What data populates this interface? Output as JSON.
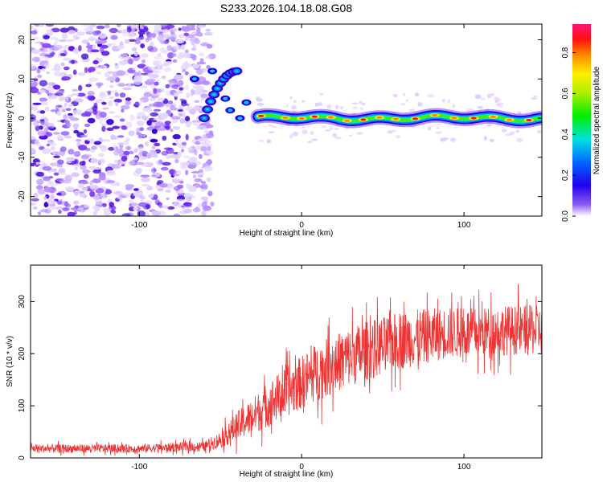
{
  "title": "S233.2026.104.18.08.G08",
  "chart_data": [
    {
      "type": "heatmap",
      "xlabel": "Height of straight line (km)",
      "ylabel": "Frequency (Hz)",
      "xlim": [
        -167,
        148
      ],
      "ylim": [
        -25,
        24
      ],
      "xticks": [
        -100,
        0,
        100
      ],
      "yticks": [
        -20,
        -10,
        0,
        10,
        20
      ],
      "ridge": {
        "description": "Spectral ridge near 0 Hz",
        "x_start": -27,
        "x_end": 148,
        "frequency": 0,
        "peak_x": [
          -25,
          -10,
          0,
          8,
          18,
          28,
          38,
          48,
          58,
          70,
          82,
          94,
          106,
          118,
          128,
          140
        ]
      },
      "curve_segment": {
        "x": [
          -60,
          -48,
          -40
        ],
        "frequency": [
          0,
          10,
          12
        ]
      },
      "noise_region_x": [
        -167,
        -60
      ],
      "colorbar": {
        "label": "Normalized spectral amplitude",
        "range": [
          0,
          0.94
        ],
        "ticks": [
          "0.0",
          "0.2",
          "0.4",
          "0.6",
          "0.8"
        ]
      }
    },
    {
      "type": "line",
      "xlabel": "Height of straight line (km)",
      "ylabel": "SNR (10 * v/v)",
      "xlim": [
        -167,
        148
      ],
      "ylim": [
        0,
        370
      ],
      "xticks": [
        -100,
        0,
        100
      ],
      "yticks": [
        0,
        100,
        200,
        300
      ],
      "color": "#ee3333",
      "series": [
        {
          "name": "SNR",
          "anchors_x": [
            -167,
            -100,
            -60,
            -50,
            -40,
            -30,
            -20,
            -10,
            0,
            10,
            20,
            30,
            40,
            50,
            60,
            70,
            80,
            90,
            100,
            110,
            120,
            130,
            140,
            148
          ],
          "anchors_mean": [
            18,
            18,
            22,
            35,
            60,
            80,
            105,
            125,
            145,
            165,
            180,
            195,
            205,
            215,
            225,
            230,
            235,
            240,
            240,
            240,
            245,
            245,
            245,
            245
          ],
          "anchors_spread": [
            10,
            10,
            12,
            20,
            35,
            45,
            55,
            60,
            65,
            70,
            70,
            72,
            72,
            70,
            70,
            68,
            65,
            62,
            60,
            60,
            60,
            60,
            60,
            60
          ]
        }
      ]
    }
  ]
}
